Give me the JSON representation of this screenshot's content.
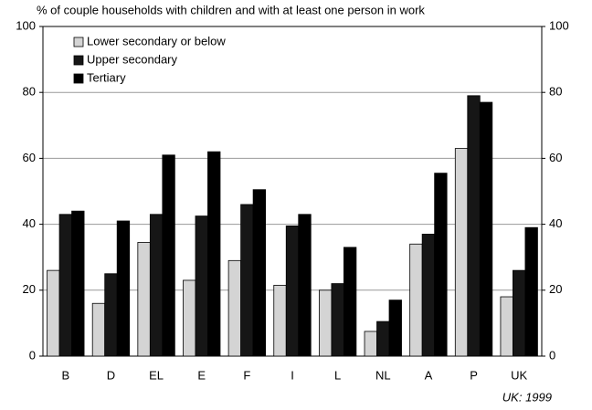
{
  "chart_data": {
    "type": "bar",
    "title": "% of couple households with children and with at least one person in work",
    "annotation": "UK: 1999",
    "categories": [
      "B",
      "D",
      "EL",
      "E",
      "F",
      "I",
      "L",
      "NL",
      "A",
      "P",
      "UK"
    ],
    "series": [
      {
        "name": "Lower secondary or below",
        "color": "#d4d4d4",
        "values": [
          26,
          16,
          34.5,
          23,
          29,
          21.5,
          20,
          7.5,
          34,
          63,
          18
        ]
      },
      {
        "name": "Upper secondary",
        "color": "#161616",
        "values": [
          43,
          25,
          43,
          42.5,
          46,
          39.5,
          22,
          10.5,
          37,
          79,
          26
        ]
      },
      {
        "name": "Tertiary",
        "color": "#000000",
        "values": [
          44,
          41,
          61,
          62,
          50.5,
          43,
          33,
          17,
          55.5,
          77,
          39
        ]
      }
    ],
    "ylim": [
      0,
      100
    ],
    "yticks": [
      0,
      20,
      40,
      60,
      80,
      100
    ],
    "y2lim": [
      0,
      100
    ],
    "y2ticks": [
      0,
      20,
      40,
      60,
      80,
      100
    ],
    "grid": true,
    "legend": "upper left"
  }
}
